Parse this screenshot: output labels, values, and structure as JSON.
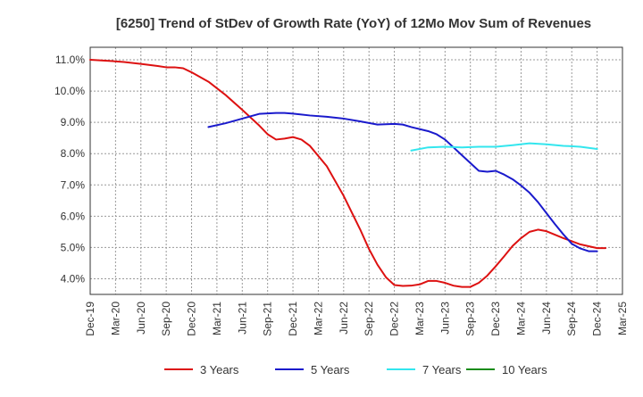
{
  "chart_data": {
    "type": "line",
    "title": "[6250]  Trend of StDev of Growth Rate (YoY) of 12Mo Mov Sum of Revenues",
    "xlabel": "",
    "ylabel": "",
    "ylim": [
      3.5,
      11.4
    ],
    "y_ticks": [
      4.0,
      5.0,
      6.0,
      7.0,
      8.0,
      9.0,
      10.0,
      11.0
    ],
    "y_tick_labels": [
      "4.0%",
      "5.0%",
      "6.0%",
      "7.0%",
      "8.0%",
      "9.0%",
      "10.0%",
      "11.0%"
    ],
    "x_tick_labels": [
      "Dec-19",
      "Mar-20",
      "Jun-20",
      "Sep-20",
      "Dec-20",
      "Mar-21",
      "Jun-21",
      "Sep-21",
      "Dec-21",
      "Mar-22",
      "Jun-22",
      "Sep-22",
      "Dec-22",
      "Mar-23",
      "Jun-23",
      "Sep-23",
      "Dec-23",
      "Mar-24",
      "Jun-24",
      "Sep-24",
      "Dec-24",
      "Mar-25"
    ],
    "grid": true,
    "legend_position": "bottom",
    "series": [
      {
        "name": "3 Years",
        "color": "#dd1111",
        "points": [
          [
            0,
            11.0
          ],
          [
            2,
            10.97
          ],
          [
            4,
            10.93
          ],
          [
            6,
            10.87
          ],
          [
            8,
            10.8
          ],
          [
            9,
            10.76
          ],
          [
            10,
            10.76
          ],
          [
            11,
            10.73
          ],
          [
            12,
            10.6
          ],
          [
            14,
            10.3
          ],
          [
            16,
            9.88
          ],
          [
            18,
            9.4
          ],
          [
            20,
            8.9
          ],
          [
            21,
            8.62
          ],
          [
            22,
            8.45
          ],
          [
            23,
            8.48
          ],
          [
            24,
            8.53
          ],
          [
            25,
            8.45
          ],
          [
            26,
            8.25
          ],
          [
            28,
            7.6
          ],
          [
            30,
            6.65
          ],
          [
            32,
            5.55
          ],
          [
            33,
            4.95
          ],
          [
            34,
            4.45
          ],
          [
            35,
            4.05
          ],
          [
            36,
            3.8
          ],
          [
            37,
            3.77
          ],
          [
            38,
            3.78
          ],
          [
            39,
            3.82
          ],
          [
            40,
            3.93
          ],
          [
            41,
            3.93
          ],
          [
            42,
            3.87
          ],
          [
            43,
            3.78
          ],
          [
            44,
            3.74
          ],
          [
            45,
            3.74
          ],
          [
            46,
            3.87
          ],
          [
            47,
            4.1
          ],
          [
            48,
            4.4
          ],
          [
            49,
            4.72
          ],
          [
            50,
            5.05
          ],
          [
            51,
            5.3
          ],
          [
            52,
            5.5
          ],
          [
            53,
            5.57
          ],
          [
            54,
            5.52
          ],
          [
            56,
            5.3
          ],
          [
            58,
            5.1
          ],
          [
            60,
            4.98
          ],
          [
            61,
            4.98
          ]
        ]
      },
      {
        "name": "5 Years",
        "color": "#1a1acc",
        "points": [
          [
            14,
            8.85
          ],
          [
            16,
            8.97
          ],
          [
            18,
            9.12
          ],
          [
            20,
            9.27
          ],
          [
            22,
            9.3
          ],
          [
            23,
            9.3
          ],
          [
            24,
            9.28
          ],
          [
            26,
            9.22
          ],
          [
            28,
            9.18
          ],
          [
            30,
            9.12
          ],
          [
            32,
            9.03
          ],
          [
            34,
            8.93
          ],
          [
            36,
            8.95
          ],
          [
            37,
            8.93
          ],
          [
            38,
            8.85
          ],
          [
            40,
            8.72
          ],
          [
            41,
            8.62
          ],
          [
            42,
            8.45
          ],
          [
            43,
            8.2
          ],
          [
            44,
            7.95
          ],
          [
            45,
            7.7
          ],
          [
            46,
            7.45
          ],
          [
            47,
            7.42
          ],
          [
            48,
            7.45
          ],
          [
            49,
            7.33
          ],
          [
            50,
            7.18
          ],
          [
            51,
            6.98
          ],
          [
            52,
            6.75
          ],
          [
            53,
            6.45
          ],
          [
            54,
            6.1
          ],
          [
            55,
            5.75
          ],
          [
            56,
            5.42
          ],
          [
            57,
            5.12
          ],
          [
            58,
            4.97
          ],
          [
            59,
            4.88
          ],
          [
            60,
            4.88
          ]
        ]
      },
      {
        "name": "7 Years",
        "color": "#33e6ee",
        "points": [
          [
            38,
            8.1
          ],
          [
            40,
            8.2
          ],
          [
            42,
            8.22
          ],
          [
            44,
            8.2
          ],
          [
            46,
            8.22
          ],
          [
            48,
            8.22
          ],
          [
            50,
            8.27
          ],
          [
            52,
            8.33
          ],
          [
            54,
            8.3
          ],
          [
            56,
            8.25
          ],
          [
            58,
            8.22
          ],
          [
            60,
            8.15
          ]
        ]
      },
      {
        "name": "10 Years",
        "color": "#1a8c1a",
        "points": []
      }
    ]
  }
}
